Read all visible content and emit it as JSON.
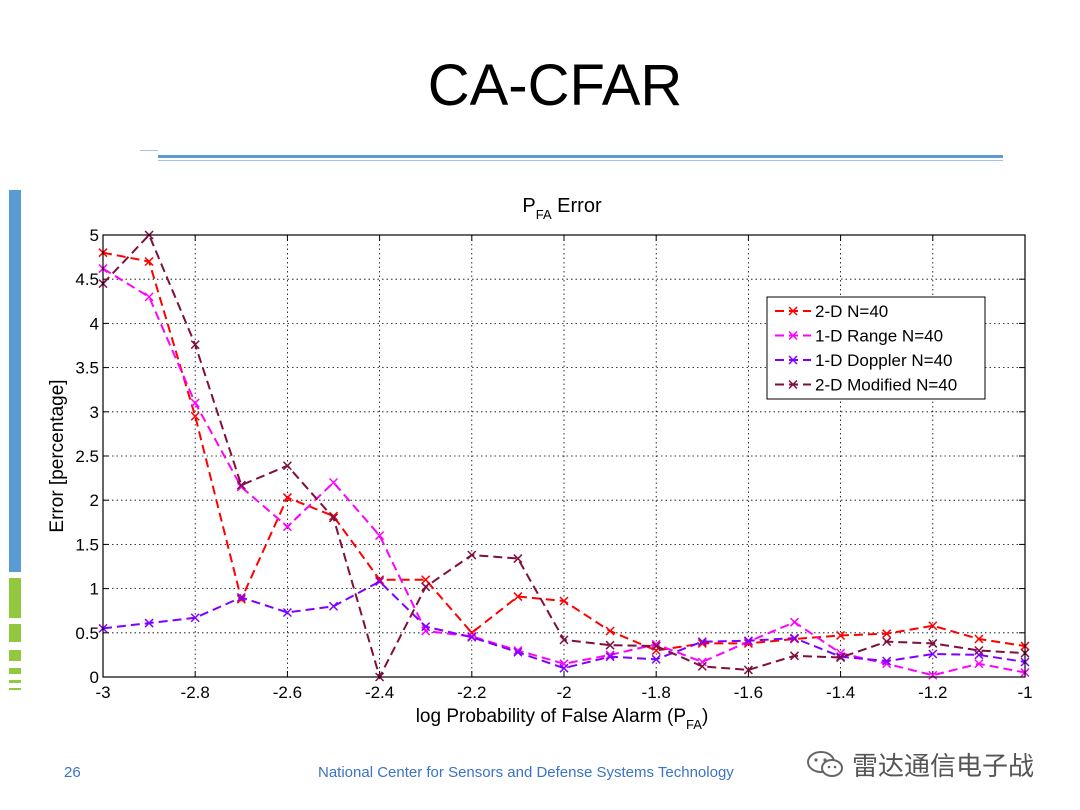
{
  "slide": {
    "title": "CA-CFAR",
    "page_number": "26",
    "footer": "National Center for Sensors and Defense Systems Technology",
    "watermark": "雷达通信电子战",
    "colors": {
      "accent_blue": "#5b9bd5",
      "accent_green": "#92c83e",
      "footer_text": "#3a73c8"
    }
  },
  "chart_data": {
    "type": "line",
    "title_main": "P",
    "title_sub": "FA",
    "title_rest": " Error",
    "xlabel_main": "log Probability of False Alarm (P",
    "xlabel_sub": "FA",
    "xlabel_end": ")",
    "ylabel": "Error [percentage]",
    "xlim": [
      -3,
      -1
    ],
    "ylim": [
      0,
      5
    ],
    "xticks": [
      -3,
      -2.8,
      -2.6,
      -2.4,
      -2.2,
      -2,
      -1.8,
      -1.6,
      -1.4,
      -1.2,
      -1
    ],
    "xtick_labels": [
      "-3",
      "-2.8",
      "-2.6",
      "-2.4",
      "-2.2",
      "-2",
      "-1.8",
      "-1.6",
      "-1.4",
      "-1.2",
      "-1"
    ],
    "yticks": [
      0,
      0.5,
      1,
      1.5,
      2,
      2.5,
      3,
      3.5,
      4,
      4.5,
      5
    ],
    "ytick_labels": [
      "0",
      "0.5",
      "1",
      "1.5",
      "2",
      "2.5",
      "3",
      "3.5",
      "4",
      "4.5",
      "5"
    ],
    "grid": true,
    "legend_position": "top-right",
    "x": [
      -3,
      -2.9,
      -2.8,
      -2.7,
      -2.6,
      -2.5,
      -2.4,
      -2.3,
      -2.2,
      -2.1,
      -2,
      -1.9,
      -1.8,
      -1.7,
      -1.6,
      -1.5,
      -1.4,
      -1.3,
      -1.2,
      -1.1,
      -1
    ],
    "series": [
      {
        "name": "2-D N=40",
        "color": "#ff0000",
        "values": [
          4.8,
          4.7,
          2.95,
          0.88,
          2.03,
          1.82,
          1.1,
          1.1,
          0.5,
          0.91,
          0.86,
          0.52,
          0.3,
          0.38,
          0.38,
          0.43,
          0.47,
          0.49,
          0.58,
          0.43,
          0.35
        ]
      },
      {
        "name": "1-D Range N=40",
        "color": "#ff00ff",
        "values": [
          4.62,
          4.3,
          3.1,
          2.15,
          1.7,
          2.2,
          1.6,
          0.52,
          0.46,
          0.3,
          0.15,
          0.25,
          0.37,
          0.17,
          0.4,
          0.62,
          0.27,
          0.15,
          0.02,
          0.15,
          0.05
        ]
      },
      {
        "name": "1-D Doppler N=40",
        "color": "#7f00ff",
        "values": [
          0.55,
          0.61,
          0.67,
          0.9,
          0.73,
          0.8,
          1.08,
          0.57,
          0.45,
          0.28,
          0.1,
          0.23,
          0.2,
          0.4,
          0.41,
          0.44,
          0.23,
          0.18,
          0.26,
          0.25,
          0.17
        ]
      },
      {
        "name": "2-D Modified N=40",
        "color": "#7f0f3f",
        "values": [
          4.45,
          5.0,
          3.76,
          2.17,
          2.39,
          1.8,
          0.0,
          1.02,
          1.38,
          1.34,
          0.42,
          0.36,
          0.35,
          0.12,
          0.08,
          0.24,
          0.22,
          0.4,
          0.38,
          0.3,
          0.27
        ]
      }
    ]
  }
}
